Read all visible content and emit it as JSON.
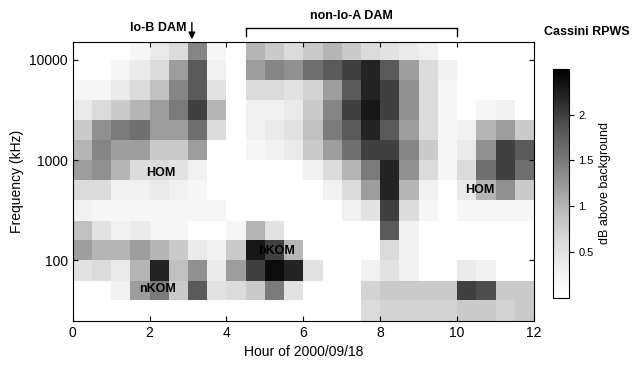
{
  "chart_data": {
    "type": "heatmap",
    "xlabel": "Hour of 2000/09/18",
    "ylabel": "Frequency (kHz)",
    "log": "y",
    "xlim": [
      0,
      12
    ],
    "xticks": [
      0,
      2,
      4,
      6,
      8,
      10,
      12
    ],
    "ylim": [
      25,
      15000
    ],
    "yticks": [
      100,
      1000,
      10000
    ],
    "time_edges": [
      0,
      0.5,
      1,
      1.5,
      2,
      2.5,
      3,
      3.5,
      4,
      4.5,
      5,
      5.5,
      6,
      6.5,
      7,
      7.5,
      8,
      8.5,
      9,
      9.5,
      10,
      10.5,
      11,
      11.5,
      12
    ],
    "frequency_edges": [
      25,
      40,
      63,
      100,
      160,
      250,
      400,
      630,
      1000,
      1600,
      2500,
      4000,
      6300,
      10000,
      15000
    ],
    "cells": [
      [
        0,
        0,
        0,
        0,
        0,
        0,
        0,
        0,
        0,
        0,
        0,
        0,
        0,
        0,
        0,
        0.6,
        0.7,
        0.7,
        0.7,
        0.7,
        0.8,
        0.8,
        0.7,
        0.8
      ],
      [
        0,
        0,
        0.3,
        1.2,
        1.5,
        0.8,
        1.8,
        0.5,
        0.6,
        0.8,
        1.5,
        0.5,
        0,
        0,
        0,
        0.7,
        0.8,
        0.8,
        0.8,
        0.8,
        2.0,
        1.9,
        0.8,
        0.8
      ],
      [
        0.5,
        0.6,
        0.4,
        1.0,
        2.2,
        0.9,
        1.3,
        0.4,
        1.2,
        2.0,
        2.4,
        2.2,
        0.5,
        0,
        0,
        0.3,
        0.5,
        0.3,
        0,
        0,
        0.4,
        0.3,
        0,
        0
      ],
      [
        1.2,
        1.0,
        1.0,
        1.2,
        1.0,
        0.8,
        0.4,
        0.3,
        0.8,
        2.3,
        2.0,
        1.0,
        0,
        0,
        0,
        0,
        0.6,
        0.3,
        0,
        0,
        0,
        0,
        0,
        0
      ],
      [
        0.9,
        0.5,
        0.3,
        0.4,
        0.2,
        0.2,
        0,
        0,
        0.2,
        1.0,
        0.5,
        0,
        0,
        0,
        0,
        0,
        1.8,
        0.3,
        0,
        0,
        0,
        0,
        0,
        0
      ],
      [
        0.3,
        0.2,
        0.2,
        0.2,
        0.2,
        0.2,
        0.2,
        0.2,
        0,
        0,
        0,
        0,
        0,
        0,
        0.3,
        0.5,
        2.0,
        0.6,
        0.2,
        0,
        0.2,
        0.2,
        0.2,
        0.2
      ],
      [
        0.6,
        0.6,
        0.3,
        0.3,
        0.4,
        0.3,
        0.2,
        0,
        0,
        0,
        0,
        0,
        0,
        0.3,
        0.6,
        1.2,
        2.2,
        1.0,
        0.3,
        0,
        0.4,
        1.0,
        1.3,
        0.8
      ],
      [
        1.2,
        1.3,
        1.0,
        0.6,
        0.6,
        0.5,
        0.3,
        0,
        0,
        0,
        0,
        0,
        0.3,
        0.6,
        1.0,
        1.5,
        2.2,
        1.3,
        0.6,
        0.2,
        0.6,
        1.6,
        2.0,
        1.6
      ],
      [
        1.0,
        1.4,
        1.2,
        1.2,
        0.8,
        0.8,
        1.2,
        0,
        0,
        0.2,
        0.3,
        0.4,
        0.8,
        1.2,
        1.6,
        2.0,
        2.0,
        1.4,
        0.8,
        0.2,
        0.4,
        1.3,
        2.0,
        1.8
      ],
      [
        0.8,
        1.3,
        1.5,
        1.6,
        1.2,
        1.2,
        1.6,
        0.6,
        0,
        0.3,
        0.4,
        0.5,
        0.9,
        1.5,
        1.8,
        2.2,
        1.8,
        1.2,
        0.6,
        0.2,
        0.3,
        1.0,
        1.2,
        0.8
      ],
      [
        0.4,
        0.6,
        0.8,
        1.0,
        1.2,
        1.5,
        2.0,
        1.0,
        0,
        0.3,
        0.3,
        0.4,
        0.8,
        1.4,
        2.0,
        2.3,
        2.0,
        1.3,
        0.6,
        0.2,
        0,
        0.2,
        0.3,
        0
      ],
      [
        0.2,
        0.2,
        0.4,
        0.6,
        0.9,
        1.4,
        1.8,
        0.5,
        0,
        0.6,
        0.6,
        0.5,
        0.7,
        1.2,
        1.8,
        2.2,
        2.0,
        1.3,
        0.6,
        0.2,
        0,
        0,
        0,
        0
      ],
      [
        0,
        0,
        0.2,
        0.4,
        0.6,
        1.2,
        1.8,
        0.3,
        0,
        1.2,
        1.4,
        1.3,
        1.6,
        1.8,
        2.0,
        2.2,
        1.8,
        1.2,
        0.6,
        0.3,
        0,
        0,
        0,
        0
      ],
      [
        0,
        0,
        0,
        0.2,
        0.4,
        0.6,
        1.4,
        0.2,
        0,
        1.0,
        0.8,
        0.6,
        0.8,
        1.0,
        0.8,
        0.6,
        0.5,
        0.4,
        0.3,
        0,
        0,
        0,
        0,
        0
      ]
    ],
    "colorbar": {
      "title": "Cassini RPWS",
      "label": "dB above background",
      "range": [
        0,
        2.5
      ],
      "ticks": [
        0.5,
        {
          "value": 1,
          "label": "1."
        },
        1.5,
        {
          "value": 2,
          "label": "2."
        }
      ]
    },
    "annotations": [
      {
        "text": "HOM",
        "x": 2.3,
        "y": 750
      },
      {
        "text": "HOM",
        "x": 10.6,
        "y": 500
      },
      {
        "text": "bKOM",
        "x": 5.3,
        "y": 125
      },
      {
        "text": "nKOM",
        "x": 2.2,
        "y": 52
      }
    ],
    "top_labels": [
      {
        "text": "Io-B DAM",
        "x": 3.1
      },
      {
        "text": "non-Io-A DAM",
        "xrange": [
          4.5,
          10
        ]
      }
    ]
  }
}
